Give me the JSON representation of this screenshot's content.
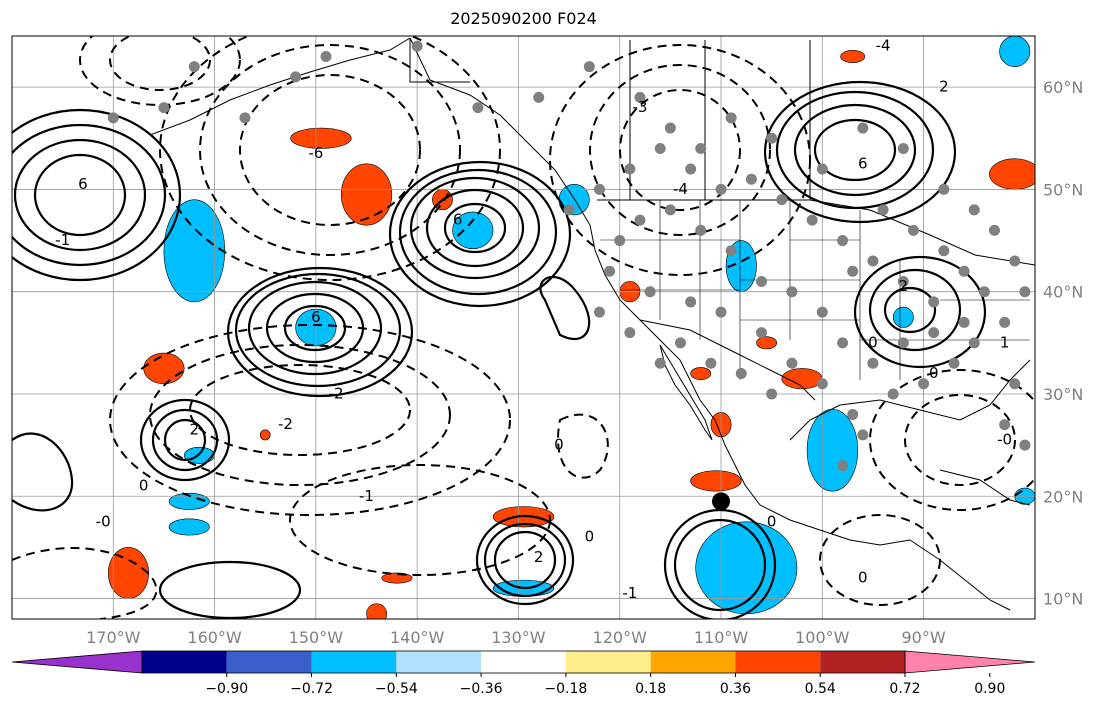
{
  "title": "2025090200 F024",
  "map": {
    "projection": "PlateCarree",
    "lon_range": [
      -180,
      -79
    ],
    "lat_range": [
      8,
      65
    ],
    "lon_ticks": [
      {
        "value": -170,
        "label": "170°W"
      },
      {
        "value": -160,
        "label": "160°W"
      },
      {
        "value": -150,
        "label": "150°W"
      },
      {
        "value": -140,
        "label": "140°W"
      },
      {
        "value": -130,
        "label": "130°W"
      },
      {
        "value": -120,
        "label": "120°W"
      },
      {
        "value": -110,
        "label": "110°W"
      },
      {
        "value": -100,
        "label": "100°W"
      },
      {
        "value": -90,
        "label": "90°W"
      }
    ],
    "lat_ticks": [
      {
        "value": 60,
        "label": "60°N"
      },
      {
        "value": 50,
        "label": "50°N"
      },
      {
        "value": 40,
        "label": "40°N"
      },
      {
        "value": 30,
        "label": "30°N"
      },
      {
        "value": 20,
        "label": "20°N"
      },
      {
        "value": 10,
        "label": "10°N"
      }
    ],
    "gridlines": true,
    "marker": {
      "lon": -110,
      "lat": 19.5,
      "color": "#000000"
    },
    "station_color": "#808080",
    "contour_color": "#000000",
    "contour_labels_solid": [
      {
        "text": "6",
        "lon": -173,
        "lat": 50.5
      },
      {
        "text": "6",
        "lon": -150,
        "lat": 37.5
      },
      {
        "text": "6",
        "lon": -136,
        "lat": 47
      },
      {
        "text": "6",
        "lon": -96,
        "lat": 52.5
      },
      {
        "text": "2",
        "lon": -162,
        "lat": 26.5
      },
      {
        "text": "2",
        "lon": -128,
        "lat": 14
      },
      {
        "text": "2",
        "lon": -92,
        "lat": 40.5
      },
      {
        "text": "2",
        "lon": -88,
        "lat": 60
      },
      {
        "text": "0",
        "lon": -167,
        "lat": 21
      },
      {
        "text": "0",
        "lon": -123,
        "lat": 16
      },
      {
        "text": "0",
        "lon": -105,
        "lat": 17.5
      },
      {
        "text": "0",
        "lon": -96,
        "lat": 12
      },
      {
        "text": "0",
        "lon": -89,
        "lat": 32
      },
      {
        "text": "1",
        "lon": -82,
        "lat": 35
      }
    ],
    "contour_labels_dashed": [
      {
        "text": "-2",
        "lon": -148,
        "lat": 30
      },
      {
        "text": "-1",
        "lon": -145,
        "lat": 20
      },
      {
        "text": "-3",
        "lon": -118,
        "lat": 58
      },
      {
        "text": "-2",
        "lon": -153,
        "lat": 27
      },
      {
        "text": "-6",
        "lon": -150,
        "lat": 53.5
      },
      {
        "text": "-4",
        "lon": -114,
        "lat": 50
      },
      {
        "text": "-1",
        "lon": -175,
        "lat": 45
      },
      {
        "text": "-0",
        "lon": -171,
        "lat": 17.5
      },
      {
        "text": "-1",
        "lon": -119,
        "lat": 10.5
      },
      {
        "text": "-0",
        "lon": -82,
        "lat": 25.5
      },
      {
        "text": "-4",
        "lon": -94,
        "lat": 64
      },
      {
        "text": "0",
        "lon": -126,
        "lat": 25
      },
      {
        "text": "0",
        "lon": -95,
        "lat": 35
      }
    ],
    "shaded_regions": [
      {
        "sign": "negative",
        "shade": "-0.54",
        "lon": -162,
        "lat": 44,
        "rx": 3,
        "ry": 5
      },
      {
        "sign": "negative",
        "shade": "-0.54",
        "lon": -150,
        "lat": 36.5,
        "rx": 2,
        "ry": 1.8
      },
      {
        "sign": "negative",
        "shade": "-0.54",
        "lon": -134.5,
        "lat": 46,
        "rx": 2,
        "ry": 1.8
      },
      {
        "sign": "negative",
        "shade": "-0.54",
        "lon": -124.5,
        "lat": 49,
        "rx": 1.5,
        "ry": 1.5
      },
      {
        "sign": "negative",
        "shade": "-0.54",
        "lon": -108,
        "lat": 42.5,
        "rx": 1.5,
        "ry": 2.5
      },
      {
        "sign": "negative",
        "shade": "-0.54",
        "lon": -99,
        "lat": 24.5,
        "rx": 2.5,
        "ry": 4
      },
      {
        "sign": "negative",
        "shade": "-0.54",
        "lon": -107.5,
        "lat": 13,
        "rx": 5,
        "ry": 4.5
      },
      {
        "sign": "negative",
        "shade": "-0.54",
        "lon": -161.5,
        "lat": 24,
        "rx": 1.5,
        "ry": 0.8
      },
      {
        "sign": "negative",
        "shade": "-0.54",
        "lon": -162.5,
        "lat": 19.5,
        "rx": 2,
        "ry": 0.8
      },
      {
        "sign": "negative",
        "shade": "-0.54",
        "lon": -162.5,
        "lat": 17,
        "rx": 2,
        "ry": 0.8
      },
      {
        "sign": "negative",
        "shade": "-0.54",
        "lon": -129.5,
        "lat": 11,
        "rx": 3,
        "ry": 0.8
      },
      {
        "sign": "negative",
        "shade": "-0.54",
        "lon": -92,
        "lat": 37.5,
        "rx": 1,
        "ry": 1
      },
      {
        "sign": "negative",
        "shade": "-0.54",
        "lon": -81,
        "lat": 63.5,
        "rx": 1.5,
        "ry": 1.5
      },
      {
        "sign": "negative",
        "shade": "-0.54",
        "lon": -80,
        "lat": 20,
        "rx": 1,
        "ry": 0.8
      },
      {
        "sign": "positive",
        "shade": "0.54",
        "lon": -145,
        "lat": 49.5,
        "rx": 2.5,
        "ry": 3
      },
      {
        "sign": "positive",
        "shade": "0.54",
        "lon": -149.5,
        "lat": 55,
        "rx": 3,
        "ry": 1
      },
      {
        "sign": "positive",
        "shade": "0.54",
        "lon": -165,
        "lat": 32.5,
        "rx": 2,
        "ry": 1.5
      },
      {
        "sign": "positive",
        "shade": "0.54",
        "lon": -168.5,
        "lat": 12.5,
        "rx": 2,
        "ry": 2.5
      },
      {
        "sign": "positive",
        "shade": "0.54",
        "lon": -129.5,
        "lat": 18,
        "rx": 3,
        "ry": 1
      },
      {
        "sign": "positive",
        "shade": "0.54",
        "lon": -142,
        "lat": 12,
        "rx": 1.5,
        "ry": 0.5
      },
      {
        "sign": "positive",
        "shade": "0.54",
        "lon": -144,
        "lat": 8.5,
        "rx": 1,
        "ry": 1
      },
      {
        "sign": "positive",
        "shade": "0.54",
        "lon": -110.5,
        "lat": 21.5,
        "rx": 2.5,
        "ry": 1
      },
      {
        "sign": "positive",
        "shade": "0.54",
        "lon": -110,
        "lat": 27,
        "rx": 1,
        "ry": 1.2
      },
      {
        "sign": "positive",
        "shade": "0.54",
        "lon": -102,
        "lat": 31.5,
        "rx": 2,
        "ry": 1
      },
      {
        "sign": "positive",
        "shade": "0.54",
        "lon": -105.5,
        "lat": 35,
        "rx": 1,
        "ry": 0.6
      },
      {
        "sign": "positive",
        "shade": "0.54",
        "lon": -119,
        "lat": 40,
        "rx": 1,
        "ry": 1
      },
      {
        "sign": "positive",
        "shade": "0.54",
        "lon": -112,
        "lat": 32,
        "rx": 1,
        "ry": 0.6
      },
      {
        "sign": "positive",
        "shade": "0.54",
        "lon": -81,
        "lat": 51.5,
        "rx": 2.5,
        "ry": 1.5
      },
      {
        "sign": "positive",
        "shade": "0.54",
        "lon": -97,
        "lat": 63,
        "rx": 1.2,
        "ry": 0.6
      },
      {
        "sign": "positive",
        "shade": "0.54",
        "lon": -137.5,
        "lat": 49,
        "rx": 1,
        "ry": 1
      },
      {
        "sign": "positive",
        "shade": "0.54",
        "lon": -155,
        "lat": 26,
        "rx": 0.5,
        "ry": 0.5
      }
    ]
  },
  "colorbar": {
    "colors": [
      "#9932CC",
      "#00008B",
      "#3A5FCD",
      "#00BFFF",
      "#B0E2FF",
      "#FFFFFF",
      "#FFEC8B",
      "#FFA500",
      "#FF4500",
      "#B22222",
      "#FF82AB"
    ],
    "tick_labels": [
      "−0.90",
      "−0.72",
      "−0.54",
      "−0.36",
      "−0.18",
      "0.18",
      "0.36",
      "0.54",
      "0.72",
      "0.90"
    ]
  }
}
